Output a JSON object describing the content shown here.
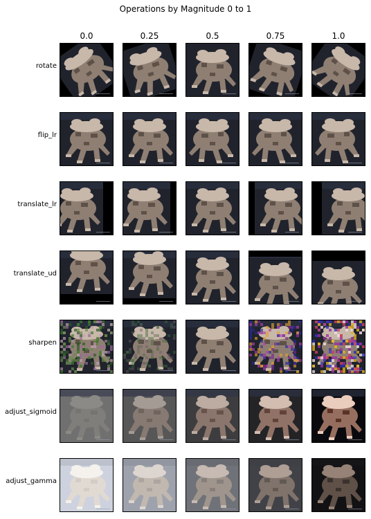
{
  "chart_data": {
    "type": "image_grid",
    "title": "Operations by Magnitude 0 to 1",
    "magnitudes": [
      "0.0",
      "0.25",
      "0.5",
      "0.75",
      "1.0"
    ],
    "operations": [
      "rotate",
      "flip_lr",
      "translate_lr",
      "translate_ud",
      "sharpen",
      "adjust_sigmoid",
      "adjust_gamma"
    ],
    "magnitude_values": [
      0.0,
      0.25,
      0.5,
      0.75,
      1.0
    ],
    "subject": "frog photo (pixelated thumbnail)",
    "colors": {
      "background_dark": "#20232c",
      "frog_body": "#8f7f73",
      "frog_light": "#c8b8aa",
      "padding_black": "#000000"
    }
  }
}
